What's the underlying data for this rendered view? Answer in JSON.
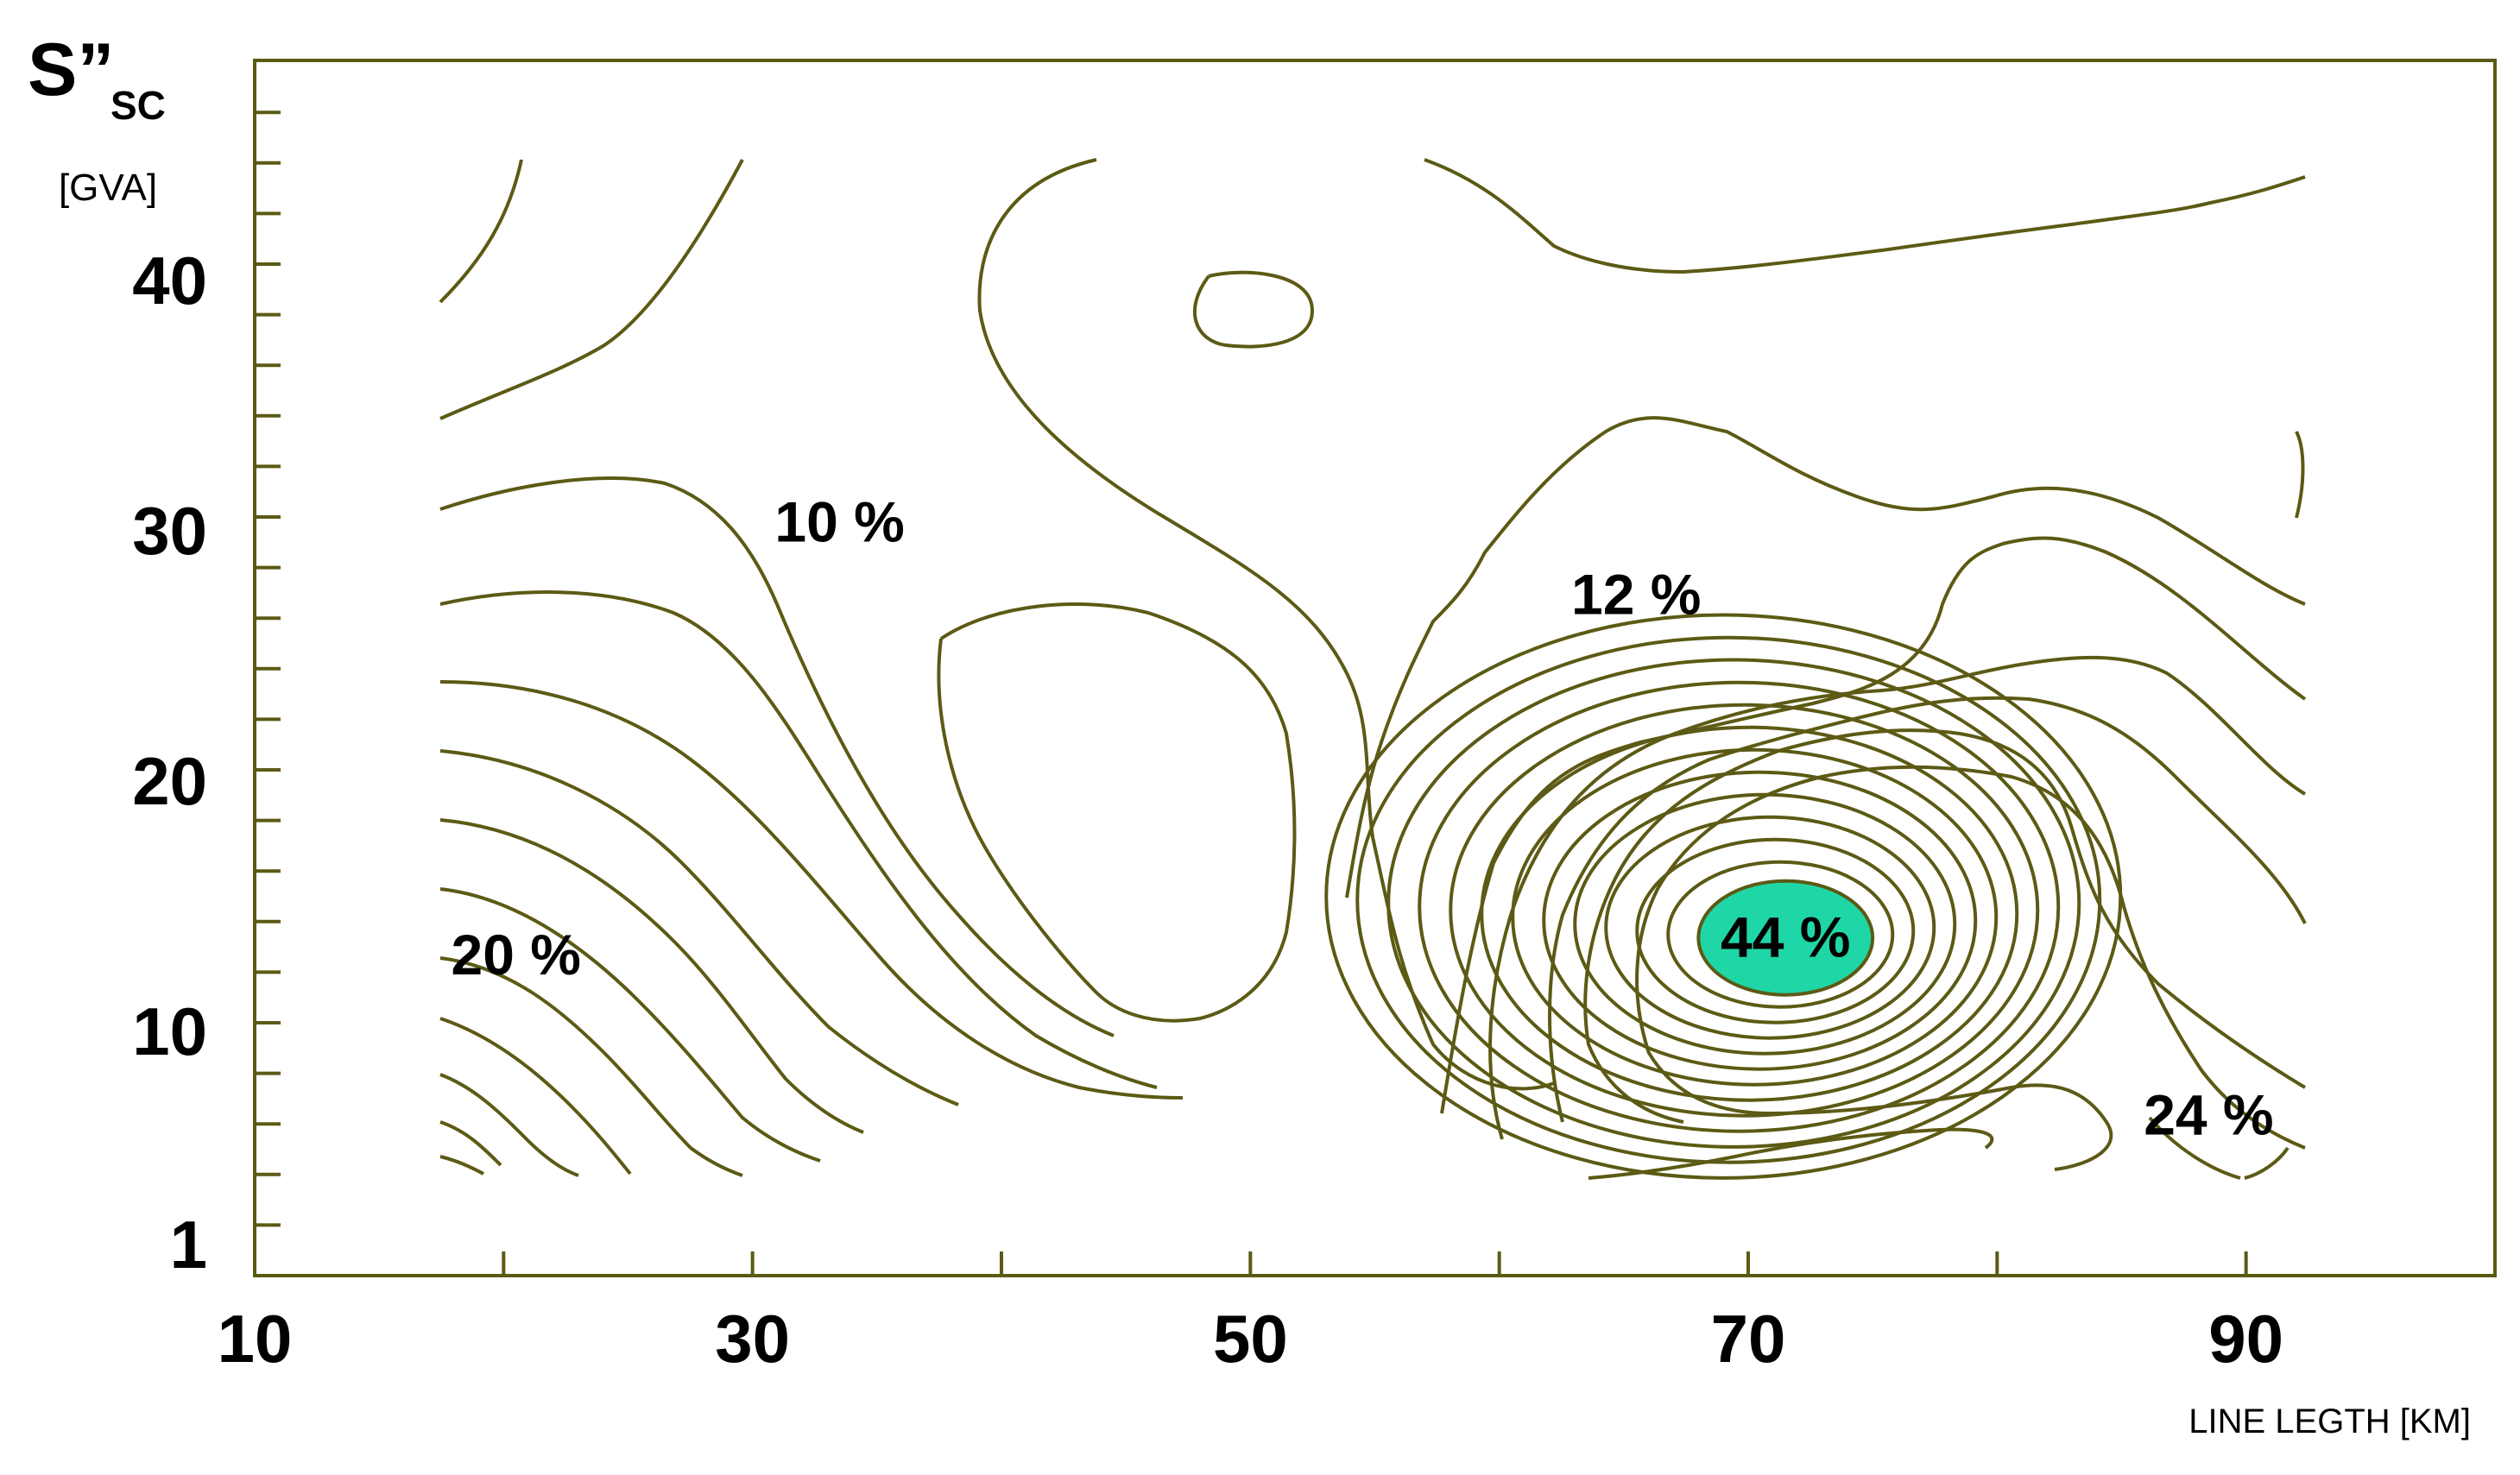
{
  "chart_data": {
    "type": "contour",
    "xlabel": "LINE LEGTH [KM]",
    "ylabel": {
      "main": "S”",
      "subscript": "SC",
      "unit": "[GVA]"
    },
    "xlim": [
      10,
      100
    ],
    "ylim": [
      0,
      45
    ],
    "x_ticks": [
      {
        "value": 10,
        "label": "10"
      },
      {
        "value": 30,
        "label": "30"
      },
      {
        "value": 50,
        "label": "50"
      },
      {
        "value": 70,
        "label": "70"
      },
      {
        "value": 90,
        "label": "90"
      }
    ],
    "y_ticks": [
      {
        "value": 1,
        "label": "1"
      },
      {
        "value": 10,
        "label": "10"
      },
      {
        "value": 20,
        "label": "20"
      },
      {
        "value": 30,
        "label": "30"
      },
      {
        "value": 40,
        "label": "40"
      }
    ],
    "line_color": "#5c5a14",
    "peak_fill_color": "#1fd6a6",
    "contour_labels": [
      {
        "text": "10 %",
        "x": 33.5,
        "y": 30.3
      },
      {
        "text": "12 %",
        "x": 65.5,
        "y": 27.4
      },
      {
        "text": "20 %",
        "x": 20.5,
        "y": 13.0
      },
      {
        "text": "44 %",
        "x": 71.5,
        "y": 13.7
      },
      {
        "text": "24 %",
        "x": 88.5,
        "y": 6.6
      }
    ],
    "peak": {
      "label": "44 %",
      "cx": 71.5,
      "cy": 13.7,
      "rx": 3.5,
      "ry": 2.1
    }
  }
}
